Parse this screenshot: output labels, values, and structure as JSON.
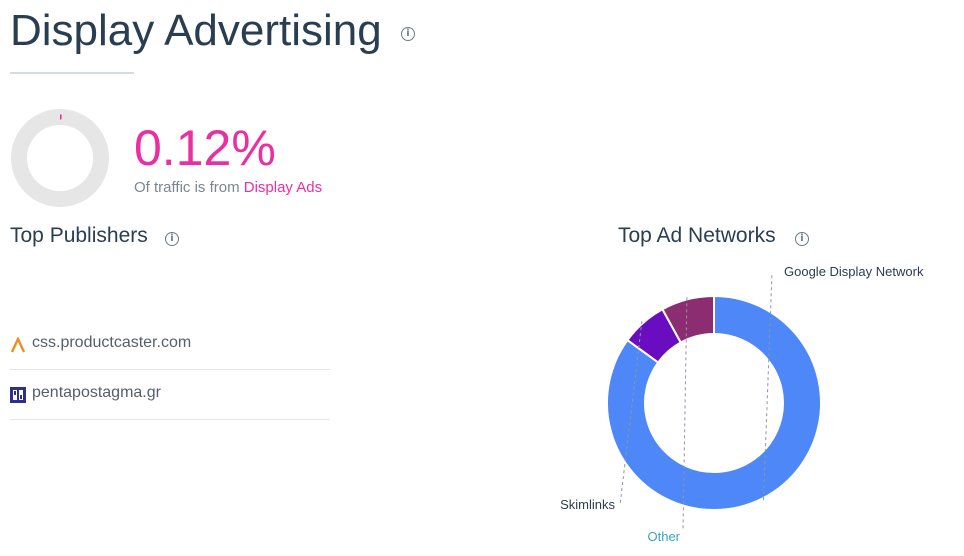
{
  "header": {
    "title": "Display Advertising",
    "info_icon": "info-icon"
  },
  "traffic": {
    "percent_text": "0.12%",
    "percent_value": 0.12,
    "caption_prefix": "Of traffic is from ",
    "caption_highlight": "Display Ads",
    "accent_color": "#ea2fa3",
    "track_color": "#e6e6e6"
  },
  "top_publishers": {
    "title": "Top Publishers",
    "items": [
      {
        "name": "css.productcaster.com",
        "icon": "productcaster-favicon-icon"
      },
      {
        "name": "pentapostagma.gr",
        "icon": "pentapostagma-favicon-icon"
      }
    ]
  },
  "top_ad_networks": {
    "title": "Top Ad Networks"
  },
  "chart_data": {
    "type": "pie",
    "style": "donut",
    "categories": [
      "Google Display Network",
      "Skimlinks",
      "Other"
    ],
    "values": [
      85,
      7,
      8
    ],
    "colors": [
      "#4d87f8",
      "#6a0dc0",
      "#8c2d72"
    ],
    "label_colors": [
      "#2a3e52",
      "#2a3e52",
      "#3aa3c4"
    ]
  }
}
